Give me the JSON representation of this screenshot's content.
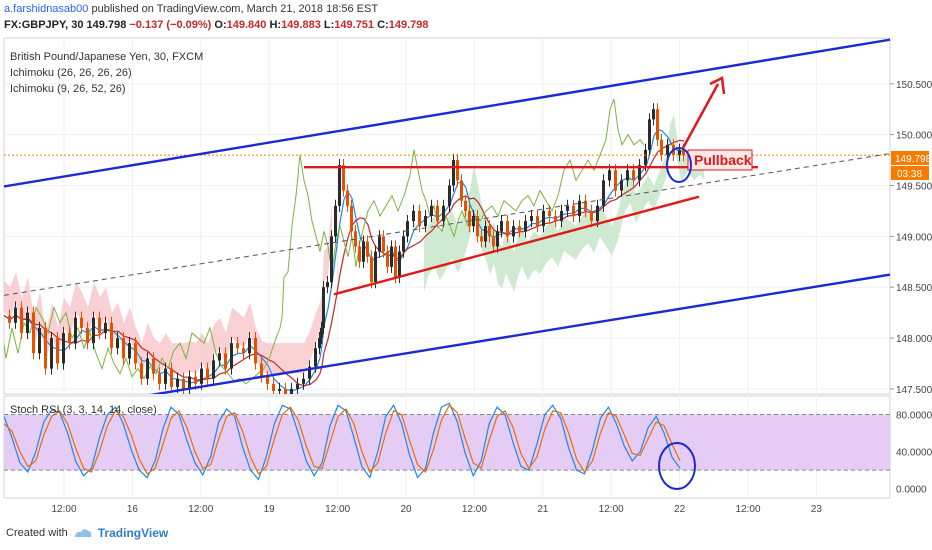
{
  "header": {
    "author": "a.farshidnasab00",
    "published": "published on TradingView.com, March 21, 2018 18:56 EST",
    "symbol": "FX:GBPJPY, 30",
    "last": "149.798",
    "change": "−0.137 (−0.09%)",
    "o_label": "O:",
    "o": "149.840",
    "h_label": "H:",
    "h": "149.883",
    "l_label": "L:",
    "l": "149.751",
    "c_label": "C:",
    "c": "149.798"
  },
  "legend": {
    "title": "British Pound/Japanese Yen, 30, FXCM",
    "ind1": "Ichimoku (26, 26, 26, 26)",
    "ind2": "Ichimoku (9, 26, 52, 26)"
  },
  "annotation": {
    "pullback": "Pullback"
  },
  "price_badge": {
    "price": "149.798",
    "countdown": "03:38"
  },
  "stoch": {
    "title": "Stoch RSI (3, 3, 14, 14, close)"
  },
  "footer": {
    "created_with": "Created with",
    "brand": "TradingView"
  },
  "colors": {
    "channel": "#1b2bd1",
    "support": "#e01919",
    "cloud_bull": "#c8e6c9",
    "cloud_bear": "#f7c6c9",
    "stoch_band": "#e1c7f4",
    "candle_up": "#2b2b2b",
    "candle_down": "#e65100",
    "price_line": "#f57c00"
  },
  "chart_data": [
    {
      "type": "candlestick",
      "title": "British Pound/Japanese Yen, 30, FXCM",
      "x_ticks": [
        "12:00",
        "16",
        "12:00",
        "19",
        "12:00",
        "20",
        "12:00",
        "21",
        "12:00",
        "22",
        "12:00",
        "23"
      ],
      "y_ticks": [
        147.5,
        148.0,
        148.5,
        149.0,
        149.5,
        150.0,
        150.5
      ],
      "ylim": [
        147.45,
        150.95
      ],
      "last_price": 149.798,
      "price_path": [
        [
          0,
          148.22
        ],
        [
          6,
          148.15
        ],
        [
          12,
          148.3
        ],
        [
          18,
          148.05
        ],
        [
          24,
          148.25
        ],
        [
          30,
          147.85
        ],
        [
          36,
          148.1
        ],
        [
          42,
          147.7
        ],
        [
          48,
          148.0
        ],
        [
          54,
          147.75
        ],
        [
          60,
          148.05
        ],
        [
          66,
          147.95
        ],
        [
          72,
          148.2
        ],
        [
          78,
          148.1
        ],
        [
          84,
          147.95
        ],
        [
          90,
          148.2
        ],
        [
          96,
          148.05
        ],
        [
          102,
          148.15
        ],
        [
          108,
          147.9
        ],
        [
          114,
          148.0
        ],
        [
          120,
          147.8
        ],
        [
          126,
          147.95
        ],
        [
          132,
          147.75
        ],
        [
          138,
          147.6
        ],
        [
          144,
          147.8
        ],
        [
          150,
          147.65
        ],
        [
          156,
          147.55
        ],
        [
          162,
          147.7
        ],
        [
          168,
          147.52
        ],
        [
          174,
          147.6
        ],
        [
          180,
          147.5
        ],
        [
          186,
          147.62
        ],
        [
          192,
          147.55
        ],
        [
          198,
          147.7
        ],
        [
          204,
          147.6
        ],
        [
          210,
          147.78
        ],
        [
          216,
          147.85
        ],
        [
          222,
          147.7
        ],
        [
          228,
          147.95
        ],
        [
          234,
          147.9
        ],
        [
          240,
          147.85
        ],
        [
          246,
          148.0
        ],
        [
          252,
          147.75
        ],
        [
          258,
          147.62
        ],
        [
          264,
          147.55
        ],
        [
          270,
          147.48
        ],
        [
          276,
          147.5
        ],
        [
          282,
          147.45
        ],
        [
          288,
          147.5
        ],
        [
          294,
          147.55
        ],
        [
          300,
          147.6
        ],
        [
          306,
          147.72
        ],
        [
          312,
          147.9
        ],
        [
          316,
          148.0
        ],
        [
          318,
          148.1
        ],
        [
          320,
          148.5
        ],
        [
          324,
          148.55
        ],
        [
          328,
          149.0
        ],
        [
          332,
          149.3
        ],
        [
          336,
          149.7
        ],
        [
          340,
          149.45
        ],
        [
          344,
          149.3
        ],
        [
          348,
          149.05
        ],
        [
          352,
          148.9
        ],
        [
          356,
          148.75
        ],
        [
          360,
          148.95
        ],
        [
          364,
          148.8
        ],
        [
          368,
          148.55
        ],
        [
          372,
          148.85
        ],
        [
          376,
          149.0
        ],
        [
          380,
          148.85
        ],
        [
          384,
          148.7
        ],
        [
          388,
          148.9
        ],
        [
          392,
          148.6
        ],
        [
          396,
          148.85
        ],
        [
          400,
          149.0
        ],
        [
          404,
          149.15
        ],
        [
          410,
          149.25
        ],
        [
          416,
          149.1
        ],
        [
          422,
          149.2
        ],
        [
          428,
          149.3
        ],
        [
          434,
          149.15
        ],
        [
          440,
          149.3
        ],
        [
          446,
          149.5
        ],
        [
          450,
          149.75
        ],
        [
          454,
          149.55
        ],
        [
          458,
          149.35
        ],
        [
          462,
          149.25
        ],
        [
          466,
          149.1
        ],
        [
          470,
          149.2
        ],
        [
          474,
          149.0
        ],
        [
          478,
          148.95
        ],
        [
          482,
          149.1
        ],
        [
          486,
          149.0
        ],
        [
          490,
          148.9
        ],
        [
          494,
          149.05
        ],
        [
          498,
          149.15
        ],
        [
          504,
          149.0
        ],
        [
          510,
          149.1
        ],
        [
          516,
          149.05
        ],
        [
          522,
          149.15
        ],
        [
          528,
          149.2
        ],
        [
          534,
          149.1
        ],
        [
          540,
          149.25
        ],
        [
          546,
          149.2
        ],
        [
          552,
          149.15
        ],
        [
          558,
          149.25
        ],
        [
          564,
          149.3
        ],
        [
          570,
          149.2
        ],
        [
          576,
          149.35
        ],
        [
          582,
          149.25
        ],
        [
          588,
          149.15
        ],
        [
          594,
          149.3
        ],
        [
          600,
          149.55
        ],
        [
          606,
          149.65
        ],
        [
          612,
          149.45
        ],
        [
          618,
          149.55
        ],
        [
          624,
          149.65
        ],
        [
          630,
          149.55
        ],
        [
          636,
          149.7
        ],
        [
          642,
          149.85
        ],
        [
          646,
          150.15
        ],
        [
          650,
          150.25
        ],
        [
          654,
          149.95
        ],
        [
          658,
          149.8
        ],
        [
          664,
          149.9
        ],
        [
          670,
          149.8
        ],
        [
          676,
          149.85
        ],
        [
          680,
          149.798
        ]
      ],
      "series": [
        {
          "name": "Ichimoku (26, 26, 26, 26)"
        },
        {
          "name": "Ichimoku (9, 26, 52, 26)"
        }
      ],
      "trendlines": [
        {
          "name": "upper channel",
          "color": "#1b2bd1",
          "points": [
            [
              0,
              149.49
            ],
            [
              890,
              150.94
            ]
          ]
        },
        {
          "name": "lower channel",
          "color": "#1b2bd1",
          "points": [
            [
              140,
              147.43
            ],
            [
              890,
              148.63
            ]
          ]
        },
        {
          "name": "resistance",
          "color": "#e01919",
          "points": [
            [
              300,
              149.68
            ],
            [
              754,
              149.68
            ]
          ]
        },
        {
          "name": "rising support",
          "color": "#e01919",
          "points": [
            [
              330,
              148.43
            ],
            [
              695,
              149.39
            ]
          ]
        },
        {
          "name": "median",
          "color": "#555555",
          "dashed": true,
          "points": [
            [
              0,
              148.42
            ],
            [
              890,
              149.82
            ]
          ]
        }
      ],
      "annotations": [
        "Pullback"
      ]
    },
    {
      "type": "line",
      "title": "Stoch RSI (3, 3, 14, 14, close)",
      "y_ticks": [
        0.0,
        40.0,
        80.0
      ],
      "ylim": [
        -10,
        100
      ],
      "bands": [
        20,
        80
      ],
      "series": [
        {
          "values": [
            78,
            55,
            28,
            18,
            40,
            72,
            85,
            82,
            60,
            30,
            14,
            22,
            55,
            80,
            88,
            70,
            42,
            20,
            12,
            30,
            65,
            88,
            80,
            52,
            28,
            15,
            35,
            72,
            86,
            78,
            45,
            20,
            10,
            35,
            70,
            90,
            86,
            60,
            30,
            14,
            28,
            68,
            90,
            84,
            55,
            24,
            12,
            40,
            78,
            90,
            70,
            36,
            12,
            22,
            60,
            88,
            92,
            72,
            38,
            14,
            30,
            70,
            88,
            80,
            50,
            24,
            20,
            48,
            80,
            90,
            76,
            44,
            20,
            16,
            42,
            76,
            88,
            70,
            46,
            30,
            40,
            66,
            78,
            60,
            34,
            22
          ]
        },
        {
          "values": [
            70,
            62,
            40,
            24,
            30,
            58,
            78,
            84,
            70,
            44,
            22,
            18,
            40,
            68,
            84,
            78,
            58,
            32,
            16,
            22,
            48,
            76,
            84,
            66,
            40,
            22,
            26,
            54,
            78,
            82,
            62,
            34,
            16,
            24,
            54,
            80,
            88,
            74,
            46,
            24,
            22,
            50,
            78,
            86,
            70,
            40,
            18,
            28,
            60,
            84,
            80,
            52,
            26,
            18,
            42,
            74,
            90,
            82,
            54,
            28,
            22,
            52,
            78,
            84,
            66,
            38,
            22,
            34,
            64,
            84,
            82,
            60,
            32,
            18,
            30,
            60,
            82,
            78,
            58,
            38,
            36,
            54,
            72,
            68,
            48,
            30
          ]
        }
      ]
    }
  ]
}
